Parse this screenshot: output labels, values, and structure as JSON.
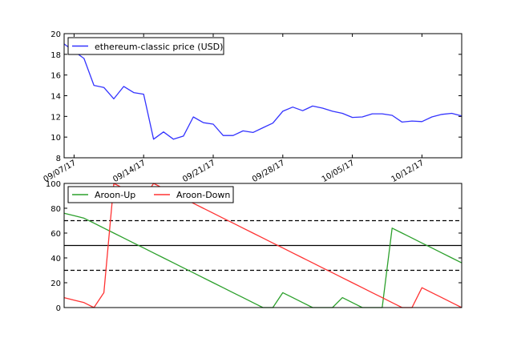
{
  "chart_data": [
    {
      "type": "line",
      "title": "",
      "xlabel": "",
      "ylabel": "",
      "ylim": [
        8,
        20
      ],
      "yticks": [
        8,
        10,
        12,
        14,
        16,
        18,
        20
      ],
      "xticks": [
        "09/07/17",
        "09/14/17",
        "09/21/17",
        "09/28/17",
        "10/05/17",
        "10/12/17"
      ],
      "x": [
        "09/06/17",
        "09/07/17",
        "09/08/17",
        "09/09/17",
        "09/10/17",
        "09/11/17",
        "09/12/17",
        "09/13/17",
        "09/14/17",
        "09/15/17",
        "09/16/17",
        "09/17/17",
        "09/18/17",
        "09/19/17",
        "09/20/17",
        "09/21/17",
        "09/22/17",
        "09/23/17",
        "09/24/17",
        "09/25/17",
        "09/26/17",
        "09/27/17",
        "09/28/17",
        "09/29/17",
        "09/30/17",
        "10/01/17",
        "10/02/17",
        "10/03/17",
        "10/04/17",
        "10/05/17",
        "10/06/17",
        "10/07/17",
        "10/08/17",
        "10/09/17",
        "10/10/17",
        "10/11/17",
        "10/12/17",
        "10/13/17",
        "10/14/17",
        "10/15/17",
        "10/16/17"
      ],
      "series": [
        {
          "name": "ethereum-classic price (USD)",
          "color": "#3333ff",
          "values": [
            19.0,
            18.3,
            17.6,
            15.0,
            14.8,
            13.7,
            14.9,
            14.3,
            14.15,
            9.8,
            10.5,
            9.8,
            10.1,
            11.95,
            11.4,
            11.25,
            10.15,
            10.15,
            10.6,
            10.45,
            10.9,
            11.35,
            12.5,
            12.9,
            12.55,
            13.0,
            12.8,
            12.5,
            12.3,
            11.9,
            11.95,
            12.25,
            12.25,
            12.1,
            11.45,
            11.55,
            11.5,
            11.95,
            12.2,
            12.3,
            12.05
          ]
        }
      ],
      "legend": "top-left",
      "grid": false
    },
    {
      "type": "line",
      "title": "",
      "xlabel": "",
      "ylabel": "",
      "ylim": [
        0,
        100
      ],
      "yticks": [
        0,
        20,
        40,
        60,
        80,
        100
      ],
      "x": [
        "09/06/17",
        "09/07/17",
        "09/08/17",
        "09/09/17",
        "09/10/17",
        "09/11/17",
        "09/12/17",
        "09/13/17",
        "09/14/17",
        "09/15/17",
        "09/16/17",
        "09/17/17",
        "09/18/17",
        "09/19/17",
        "09/20/17",
        "09/21/17",
        "09/22/17",
        "09/23/17",
        "09/24/17",
        "09/25/17",
        "09/26/17",
        "09/27/17",
        "09/28/17",
        "09/29/17",
        "09/30/17",
        "10/01/17",
        "10/02/17",
        "10/03/17",
        "10/04/17",
        "10/05/17",
        "10/06/17",
        "10/07/17",
        "10/08/17",
        "10/09/17",
        "10/10/17",
        "10/11/17",
        "10/12/17",
        "10/13/17",
        "10/14/17",
        "10/15/17",
        "10/16/17"
      ],
      "series": [
        {
          "name": "Aroon-Up",
          "color": "#2ca02c",
          "values": [
            76,
            74,
            72,
            68,
            64,
            60,
            56,
            52,
            48,
            44,
            40,
            36,
            32,
            28,
            24,
            20,
            16,
            12,
            8,
            4,
            0,
            0,
            12,
            8,
            4,
            0,
            0,
            0,
            8,
            4,
            0,
            0,
            0,
            64,
            60,
            56,
            52,
            48,
            44,
            40,
            36
          ]
        },
        {
          "name": "Aroon-Down",
          "color": "#ff3333",
          "values": [
            8,
            6,
            4,
            0,
            12,
            100,
            96,
            92,
            88,
            100,
            96,
            92,
            88,
            84,
            80,
            76,
            72,
            68,
            64,
            60,
            56,
            52,
            48,
            44,
            40,
            36,
            32,
            28,
            24,
            20,
            16,
            12,
            8,
            4,
            0,
            0,
            16,
            12,
            8,
            4,
            0
          ]
        }
      ],
      "reference_lines": [
        {
          "y": 70,
          "style": "dashed",
          "color": "#000000"
        },
        {
          "y": 50,
          "style": "solid",
          "color": "#000000"
        },
        {
          "y": 30,
          "style": "dashed",
          "color": "#000000"
        }
      ],
      "legend": "top-left",
      "grid": false
    }
  ]
}
